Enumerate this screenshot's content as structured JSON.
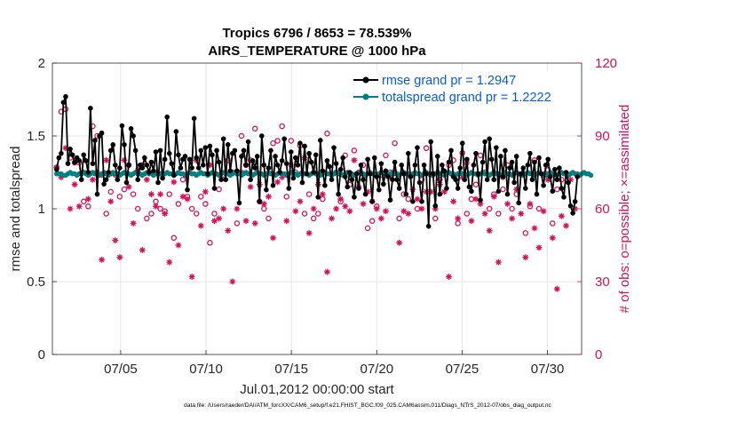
{
  "chart_data": {
    "type": "line",
    "title": [
      "Tropics 6796 / 8653 = 78.539%",
      "AIRS_TEMPERATURE @ 1000 hPa"
    ],
    "xlabel": "Jul.01,2012 00:00:00 start",
    "ylabel_left": "rmse and totalspread",
    "ylabel_right": "# of obs: o=possible; ×=assimilated",
    "ylim_left": [
      0,
      2
    ],
    "ylim_right": [
      0,
      120
    ],
    "xlim_days": [
      1.0,
      32.0
    ],
    "x_ticks": [
      {
        "day": 5,
        "label": "07/05"
      },
      {
        "day": 10,
        "label": "07/10"
      },
      {
        "day": 15,
        "label": "07/15"
      },
      {
        "day": 20,
        "label": "07/20"
      },
      {
        "day": 25,
        "label": "07/25"
      },
      {
        "day": 30,
        "label": "07/30"
      }
    ],
    "y_ticks_left": [
      "0",
      "0.5",
      "1",
      "1.5",
      "2"
    ],
    "y_ticks_right": [
      "0",
      "30",
      "60",
      "90",
      "120"
    ],
    "legend": [
      {
        "label": "rmse grand pr = 1.2947",
        "color": "#000000"
      },
      {
        "label": "totalspread grand pr = 1.2222",
        "color": "#008080"
      }
    ],
    "legend_position": "top-right",
    "colors": {
      "rmse": "#000000",
      "spread": "#008080",
      "obs": "#d41159",
      "legend_text": "#0a5bd6"
    },
    "footer": "data file: /Users/raeder/DAI/ATM_forcXX/CAM6_setup/f.e21.FHIST_BGC.f09_025.CAM6assim.011/Diags_NTrS_2012-07/obs_diag_output.nc",
    "rmse": [
      1.27,
      1.35,
      1.38,
      1.73,
      1.77,
      1.31,
      1.41,
      1.37,
      1.32,
      1.35,
      1.33,
      1.2,
      1.37,
      1.33,
      1.25,
      1.69,
      1.31,
      1.47,
      1.1,
      1.5,
      1.52,
      1.17,
      1.2,
      1.25,
      1.4,
      1.44,
      1.3,
      1.2,
      1.28,
      1.57,
      1.44,
      1.18,
      1.3,
      1.55,
      1.5,
      1.4,
      1.2,
      1.3,
      1.28,
      1.35,
      1.3,
      1.25,
      1.32,
      1.26,
      1.39,
      1.18,
      1.4,
      1.21,
      1.34,
      1.63,
      1.38,
      1.31,
      1.23,
      1.53,
      1.37,
      1.28,
      1.34,
      1.36,
      1.13,
      1.34,
      1.28,
      1.62,
      1.35,
      1.28,
      1.4,
      1.3,
      1.42,
      1.24,
      1.43,
      1.37,
      1.14,
      1.4,
      1.32,
      1.2,
      1.48,
      1.2,
      1.44,
      1.26,
      1.38,
      1.4,
      1.26,
      1.04,
      1.36,
      1.4,
      1.3,
      1.46,
      1.2,
      1.33,
      1.28,
      1.36,
      1.05,
      1.5,
      1.3,
      1.13,
      1.28,
      1.4,
      1.16,
      1.36,
      1.3,
      1.25,
      1.33,
      1.48,
      1.31,
      1.14,
      1.39,
      1.21,
      1.35,
      1.3,
      1.45,
      1.18,
      1.43,
      1.24,
      1.38,
      1.32,
      1.25,
      1.37,
      1.08,
      1.47,
      1.26,
      1.16,
      1.33,
      1.29,
      1.2,
      1.42,
      1.31,
      1.1,
      1.27,
      1.35,
      1.22,
      1.15,
      1.25,
      1.2,
      1.08,
      1.24,
      1.14,
      1.3,
      1.2,
      1.1,
      1.34,
      1.24,
      1.05,
      1.35,
      1.22,
      1.13,
      1.31,
      1.17,
      1.26,
      1.22,
      1.06,
      1.2,
      1.32,
      1.2,
      1.14,
      1.3,
      1.24,
      1.1,
      1.38,
      1.22,
      1.05,
      1.3,
      1.42,
      1.18,
      1.05,
      1.3,
      1.24,
      0.88,
      1.46,
      1.24,
      1.02,
      1.36,
      1.1,
      1.3,
      1.26,
      1.14,
      1.32,
      1.4,
      1.22,
      1.2,
      1.14,
      1.28,
      1.45,
      1.2,
      1.34,
      1.15,
      1.12,
      1.3,
      1.38,
      1.24,
      1.06,
      1.32,
      1.46,
      1.2,
      1.48,
      1.34,
      1.2,
      1.42,
      1.12,
      1.36,
      1.22,
      1.4,
      1.1,
      1.28,
      1.32,
      1.18,
      1.36,
      1.04,
      1.24,
      1.28,
      1.14,
      1.3,
      1.38,
      1.2,
      1.32,
      1.1,
      1.35,
      1.24,
      1.16,
      1.3,
      1.34,
      1.22,
      1.12,
      1.27,
      1.2,
      1.28,
      1.14,
      1.08,
      1.25,
      1.18,
      1.02,
      0.97,
      1.05,
      1.22
    ],
    "spread": [
      1.24,
      1.24,
      1.24,
      1.23,
      1.23,
      1.24,
      1.25,
      1.24,
      1.24,
      1.23,
      1.24,
      1.24,
      1.25,
      1.24,
      1.23,
      1.24,
      1.25,
      1.24,
      1.24,
      1.23,
      1.24,
      1.25,
      1.24,
      1.23,
      1.24,
      1.25,
      1.24,
      1.24,
      1.23,
      1.24,
      1.25,
      1.24,
      1.24,
      1.23,
      1.24,
      1.25,
      1.24,
      1.24,
      1.23,
      1.24,
      1.25,
      1.24,
      1.24,
      1.23,
      1.24,
      1.25,
      1.24,
      1.23,
      1.24,
      1.25,
      1.24,
      1.24,
      1.23,
      1.24,
      1.25,
      1.24,
      1.24,
      1.23,
      1.24,
      1.25,
      1.24,
      1.24,
      1.23,
      1.24,
      1.25,
      1.24,
      1.24,
      1.23,
      1.24,
      1.25,
      1.24,
      1.24,
      1.23,
      1.24,
      1.25,
      1.24,
      1.24,
      1.23,
      1.24,
      1.25,
      1.24,
      1.24,
      1.23,
      1.24,
      1.25,
      1.24,
      1.24,
      1.23,
      1.24,
      1.25,
      1.24,
      1.24,
      1.23,
      1.24,
      1.25,
      1.24,
      1.24,
      1.23,
      1.24,
      1.25,
      1.24,
      1.24,
      1.23,
      1.24,
      1.25,
      1.24,
      1.24,
      1.23,
      1.24,
      1.25,
      1.24,
      1.24,
      1.23,
      1.24,
      1.25,
      1.24,
      1.24,
      1.23,
      1.24,
      1.25,
      1.24,
      1.24,
      1.23,
      1.24,
      1.25,
      1.24,
      1.24,
      1.23,
      1.24,
      1.25,
      1.24,
      1.24,
      1.23,
      1.24,
      1.25,
      1.24,
      1.24,
      1.23,
      1.24,
      1.25,
      1.24,
      1.24,
      1.23,
      1.24,
      1.25,
      1.24,
      1.24,
      1.23,
      1.24,
      1.25,
      1.24,
      1.24,
      1.23,
      1.24,
      1.25,
      1.24,
      1.24,
      1.23,
      1.24,
      1.25,
      1.24,
      1.24,
      1.23,
      1.24,
      1.25,
      1.24,
      1.24,
      1.23,
      1.24,
      1.25,
      1.24,
      1.24,
      1.23,
      1.24,
      1.25,
      1.24,
      1.24,
      1.23,
      1.24,
      1.25,
      1.24,
      1.24,
      1.23,
      1.24,
      1.25,
      1.24,
      1.24,
      1.23,
      1.24,
      1.25,
      1.24,
      1.24,
      1.23,
      1.24,
      1.25,
      1.24,
      1.24,
      1.23,
      1.24,
      1.25,
      1.24,
      1.24,
      1.23,
      1.24,
      1.25,
      1.24,
      1.24,
      1.23,
      1.24,
      1.25,
      1.24,
      1.24,
      1.23,
      1.24,
      1.25,
      1.24,
      1.24,
      1.23,
      1.24,
      1.25,
      1.24,
      1.24,
      1.23,
      1.24,
      1.25,
      1.24,
      1.24,
      1.23,
      1.24,
      1.25,
      1.24,
      1.24,
      1.23,
      1.24,
      1.25,
      1.24,
      1.24,
      1.23
    ],
    "obs_possible": [
      77,
      62,
      100,
      95,
      101,
      76,
      81,
      97,
      79,
      104,
      79,
      80,
      63,
      89,
      61,
      86,
      94,
      82,
      90,
      71,
      74,
      87,
      58,
      63,
      67,
      96,
      74,
      71,
      65,
      92,
      68,
      53,
      78,
      90,
      66,
      69,
      60,
      93,
      78,
      92,
      56,
      75,
      58,
      88,
      63,
      85,
      60,
      73,
      59,
      94,
      66,
      70,
      48,
      97,
      62,
      66,
      72,
      87,
      65,
      76,
      60,
      90,
      58,
      80,
      65,
      78,
      62,
      73,
      46,
      85,
      58,
      75,
      68,
      89,
      74,
      60,
      80,
      66,
      75,
      61,
      54,
      66,
      90,
      57,
      78,
      63,
      80,
      72,
      93,
      65,
      63,
      88,
      60,
      78,
      56,
      68,
      87,
      62,
      88,
      62,
      94,
      76,
      65,
      70,
      88,
      56,
      75,
      63,
      86,
      66,
      58,
      81,
      66,
      88,
      56,
      60,
      58,
      80,
      64,
      74,
      91,
      60,
      74,
      72,
      75,
      66,
      63,
      52,
      82,
      60,
      70,
      58,
      84,
      66,
      75,
      58,
      78,
      62,
      52,
      75,
      55,
      68,
      61,
      58,
      74,
      84,
      82,
      65,
      75,
      60,
      87,
      48,
      56,
      82,
      66,
      78,
      64,
      60,
      74,
      70,
      60,
      58,
      72,
      61,
      85,
      66,
      74,
      60,
      56,
      60,
      72,
      54,
      74,
      62,
      78,
      71,
      80,
      67,
      54,
      76,
      83,
      62,
      58,
      80,
      64,
      78,
      70,
      56,
      82,
      61,
      75,
      69,
      60,
      76,
      66,
      80,
      58,
      72,
      68,
      54,
      78,
      68,
      60,
      82,
      66,
      57,
      74,
      62,
      50,
      76,
      61,
      54,
      80,
      66,
      60,
      70,
      74,
      58,
      76,
      60,
      54,
      80,
      68,
      58,
      72
    ],
    "obs_assim": [
      77,
      60,
      73,
      44,
      85,
      99,
      60,
      60,
      70,
      81,
      61,
      29,
      75,
      58,
      64,
      82,
      72,
      50,
      75,
      66,
      39,
      91,
      80,
      56,
      63,
      64,
      47,
      68,
      40,
      47,
      80,
      63,
      69,
      62,
      54,
      43,
      76,
      55,
      43,
      76,
      72,
      57,
      66,
      65,
      61,
      55,
      66,
      77,
      58,
      62,
      38,
      66,
      71,
      75,
      45,
      57,
      65,
      31,
      64,
      70,
      32,
      86,
      80,
      50,
      53,
      50,
      67,
      71,
      78,
      74,
      55,
      62,
      56,
      76,
      60,
      56,
      51,
      73,
      30,
      50,
      60,
      62,
      75,
      83,
      55,
      64,
      69,
      61,
      54,
      49,
      70,
      73,
      62,
      36,
      65,
      62,
      48,
      64,
      71,
      70,
      73,
      62,
      55,
      54,
      78,
      68,
      59,
      72,
      63,
      72,
      81,
      74,
      50,
      81,
      60,
      58,
      70,
      62,
      66,
      54,
      34,
      62,
      56,
      71,
      60,
      55,
      64,
      82,
      61,
      72,
      59,
      65,
      80,
      62,
      69,
      74,
      62,
      57,
      67,
      76,
      63,
      49,
      60,
      62,
      56,
      70,
      59,
      61,
      73,
      48,
      75,
      69,
      46,
      61,
      59,
      38,
      58,
      77,
      68,
      70,
      64,
      59,
      60,
      46,
      67,
      59,
      67,
      55,
      60,
      76,
      70,
      55,
      67,
      74,
      32,
      54,
      63,
      72,
      56,
      66,
      73,
      61,
      79,
      60,
      55,
      70,
      64,
      54,
      62,
      66,
      58,
      73,
      51,
      69,
      65,
      56,
      38,
      67,
      73,
      50,
      62,
      74,
      56,
      45,
      68,
      63,
      58,
      70,
      40,
      61,
      62,
      71,
      52,
      64,
      44,
      56,
      59,
      67,
      72,
      64,
      48,
      60,
      27,
      62,
      57,
      68,
      53,
      63,
      72,
      54,
      60
    ]
  }
}
